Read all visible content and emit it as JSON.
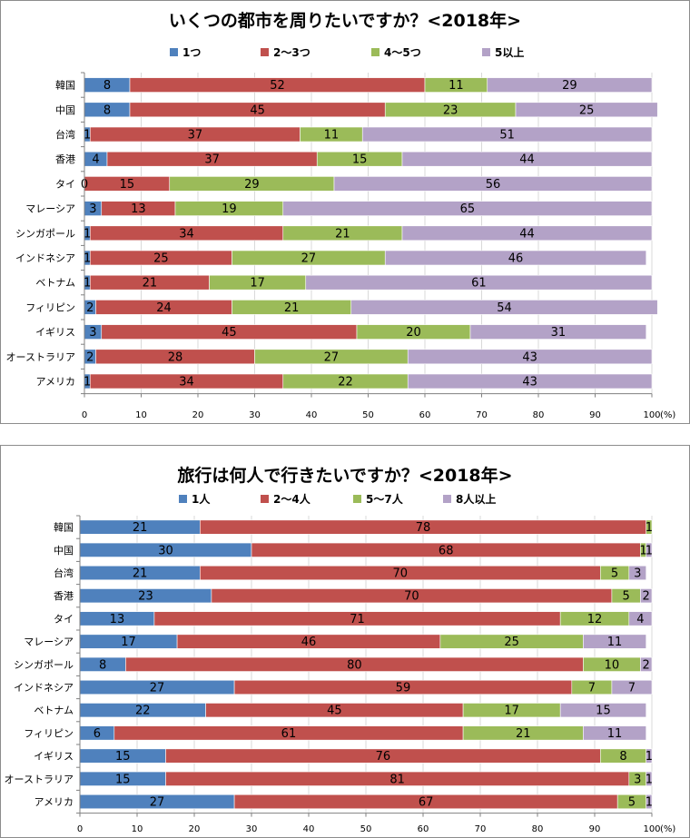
{
  "colors": {
    "s1": "#4F81BD",
    "s2": "#C0504D",
    "s3": "#9BBB59",
    "s4": "#B3A2C7",
    "grid": "#d9d9d9",
    "axis": "#808080"
  },
  "chart_data": [
    {
      "type": "bar",
      "orientation": "horizontal",
      "stacked": true,
      "title": "いくつの都市を周りたいですか？<2018年>",
      "x_unit_label": "(%)",
      "xlim": [
        0,
        100
      ],
      "x_ticks": [
        0,
        10,
        20,
        30,
        40,
        50,
        60,
        70,
        80,
        90,
        100
      ],
      "legend_position": "top",
      "categories": [
        "韓国",
        "中国",
        "台湾",
        "香港",
        "タイ",
        "マレーシア",
        "シンガポール",
        "インドネシア",
        "ベトナム",
        "フィリピン",
        "イギリス",
        "オーストラリア",
        "アメリカ"
      ],
      "series": [
        {
          "name": "1つ",
          "values": [
            8,
            8,
            1,
            4,
            0,
            3,
            1,
            1,
            1,
            2,
            3,
            2,
            1
          ]
        },
        {
          "name": "2～3つ",
          "values": [
            52,
            45,
            37,
            37,
            15,
            13,
            34,
            25,
            21,
            24,
            45,
            28,
            34
          ]
        },
        {
          "name": "4～5つ",
          "values": [
            11,
            23,
            11,
            15,
            29,
            19,
            21,
            27,
            17,
            21,
            20,
            27,
            22
          ]
        },
        {
          "name": "5以上",
          "values": [
            29,
            25,
            51,
            44,
            56,
            65,
            44,
            46,
            61,
            54,
            31,
            43,
            43
          ]
        }
      ]
    },
    {
      "type": "bar",
      "orientation": "horizontal",
      "stacked": true,
      "title": "旅行は何人で行きたいですか？<2018年>",
      "x_unit_label": "(%)",
      "xlim": [
        0,
        100
      ],
      "x_ticks": [
        0,
        10,
        20,
        30,
        40,
        50,
        60,
        70,
        80,
        90,
        100
      ],
      "legend_position": "top",
      "categories": [
        "韓国",
        "中国",
        "台湾",
        "香港",
        "タイ",
        "マレーシア",
        "シンガポール",
        "インドネシア",
        "ベトナム",
        "フィリピン",
        "イギリス",
        "オーストラリア",
        "アメリカ"
      ],
      "series": [
        {
          "name": "1人",
          "values": [
            21,
            30,
            21,
            23,
            13,
            17,
            8,
            27,
            22,
            6,
            15,
            15,
            27
          ]
        },
        {
          "name": "2～4人",
          "values": [
            78,
            68,
            70,
            70,
            71,
            46,
            80,
            59,
            45,
            61,
            76,
            81,
            67
          ]
        },
        {
          "name": "5～7人",
          "values": [
            1,
            1,
            5,
            5,
            12,
            25,
            10,
            7,
            17,
            21,
            8,
            3,
            5
          ]
        },
        {
          "name": "8人以上",
          "values": [
            0,
            1,
            3,
            2,
            4,
            11,
            2,
            7,
            15,
            11,
            1,
            1,
            1
          ]
        }
      ]
    }
  ]
}
